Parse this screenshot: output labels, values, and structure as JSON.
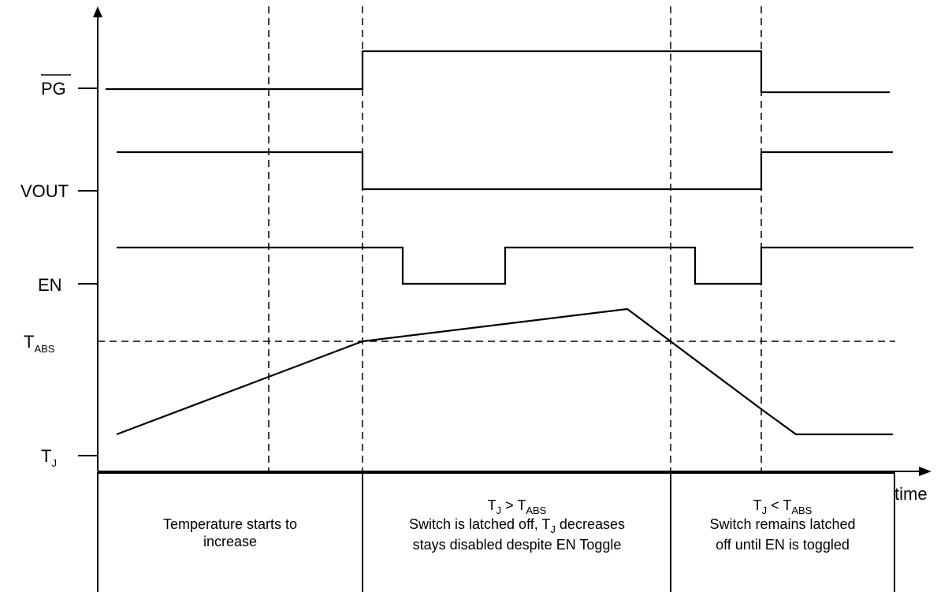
{
  "axes": {
    "x_label": "time"
  },
  "signals": {
    "pg": {
      "main": "PG",
      "overbar": true
    },
    "vout": {
      "main": "VOUT"
    },
    "en": {
      "main": "EN"
    },
    "tabs": {
      "main": "T",
      "sub": "ABS"
    },
    "tj": {
      "main": "T",
      "sub": "J"
    }
  },
  "phases": [
    {
      "line1": "Temperature starts to",
      "line2": "increase"
    },
    {
      "cond": {
        "a": "T",
        "a_sub": "J",
        "op": " > ",
        "b": "T",
        "b_sub": "ABS"
      },
      "line2_pre": "Switch is latched off, T",
      "line2_sub": "J",
      "line2_post": " decreases",
      "line3": "stays disabled despite EN Toggle"
    },
    {
      "cond": {
        "a": "T",
        "a_sub": "J",
        "op": " < ",
        "b": "T",
        "b_sub": "ABS"
      },
      "line2": "Switch remains latched",
      "line3": "off until EN is toggled"
    }
  ]
}
